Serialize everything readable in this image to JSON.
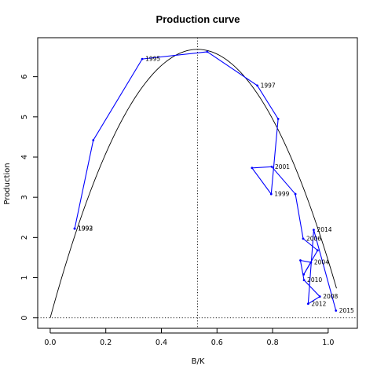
{
  "chart_data": {
    "type": "line",
    "title": "Production curve",
    "xlabel": "B/K",
    "ylabel": "Production",
    "xlim": [
      -0.045,
      1.105
    ],
    "ylim": [
      -0.26,
      6.97
    ],
    "x_ticks": [
      0.0,
      0.2,
      0.4,
      0.6,
      0.8,
      1.0
    ],
    "x_tick_labels": [
      "0.0",
      "0.2",
      "0.4",
      "0.6",
      "0.8",
      "1.0"
    ],
    "y_ticks": [
      0,
      1,
      2,
      3,
      4,
      5,
      6
    ],
    "y_tick_labels": [
      "0",
      "1",
      "2",
      "3",
      "4",
      "5",
      "6"
    ],
    "colors": {
      "series": "#0000ff",
      "curve": "#000000",
      "reference": "#000000"
    },
    "series": [
      {
        "x": [
          0.088,
          0.088,
          0.155,
          0.331,
          0.565,
          0.745,
          0.82,
          0.795,
          0.726,
          0.797,
          0.882,
          0.91,
          0.962,
          0.912,
          0.938,
          0.9,
          0.913,
          0.97,
          0.928,
          0.948,
          1.028
        ],
        "y": [
          2.22,
          2.22,
          4.42,
          6.44,
          6.62,
          5.78,
          4.95,
          3.08,
          3.73,
          3.76,
          3.08,
          1.97,
          1.68,
          1.08,
          1.38,
          1.43,
          0.94,
          0.53,
          0.35,
          2.19,
          0.18
        ],
        "labels": [
          "1992",
          "1993",
          "",
          "1995",
          "",
          "1997",
          "",
          "1999",
          "",
          "2001",
          "",
          "2006",
          "",
          "",
          "2004",
          "",
          "2010",
          "2008",
          "2012",
          "2014",
          "2015"
        ]
      }
    ],
    "curve": {
      "x_peak": 0.53,
      "y_peak": 6.68,
      "x_zero": 1.01
    },
    "vline_x": 0.53,
    "hline_y": 0.0,
    "grid": false,
    "legend": "none"
  }
}
